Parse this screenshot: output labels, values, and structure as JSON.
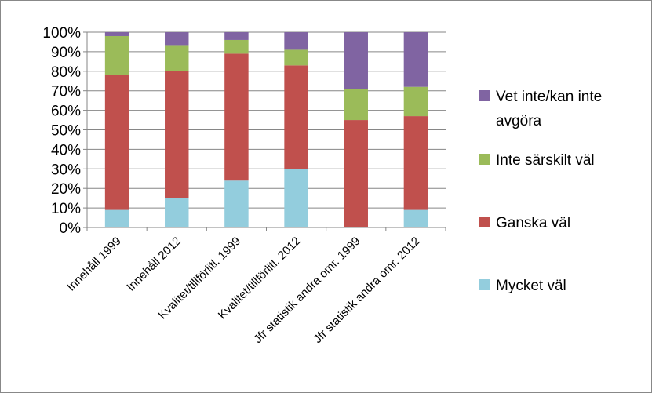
{
  "chart_data": {
    "type": "bar",
    "stacked": true,
    "percent": true,
    "categories": [
      "Innehåll 1999",
      "Innehåll 2012",
      "Kvalitet/tillförlitl. 1999",
      "Kvalitet/tillförlitl. 2012",
      "Jfr statistik andra omr. 1999",
      "Jfr statistik andra omr. 2012"
    ],
    "series": [
      {
        "name": "Mycket väl",
        "color": "#93CDDD",
        "values": [
          9,
          15,
          24,
          30,
          0,
          9
        ]
      },
      {
        "name": "Ganska väl",
        "color": "#C0504D",
        "values": [
          69,
          65,
          65,
          53,
          55,
          48
        ]
      },
      {
        "name": "Inte särskilt väl",
        "color": "#9BBB59",
        "values": [
          20,
          13,
          7,
          8,
          16,
          15
        ]
      },
      {
        "name": "Vet inte/kan inte avgöra",
        "color": "#8064A2",
        "values": [
          2,
          7,
          4,
          9,
          29,
          28
        ]
      }
    ],
    "yticks": [
      "0%",
      "10%",
      "20%",
      "30%",
      "40%",
      "50%",
      "60%",
      "70%",
      "80%",
      "90%",
      "100%"
    ],
    "ylim": [
      0,
      100
    ],
    "grid": true,
    "legend": {
      "position": "right",
      "entries": [
        {
          "lines": [
            "Vet inte/kan inte",
            "avgöra"
          ],
          "color": "#8064A2"
        },
        {
          "lines": [
            "Inte särskilt väl"
          ],
          "color": "#9BBB59"
        },
        {
          "lines": [
            "Ganska väl"
          ],
          "color": "#C0504D"
        },
        {
          "lines": [
            "Mycket väl"
          ],
          "color": "#93CDDD"
        }
      ]
    }
  }
}
